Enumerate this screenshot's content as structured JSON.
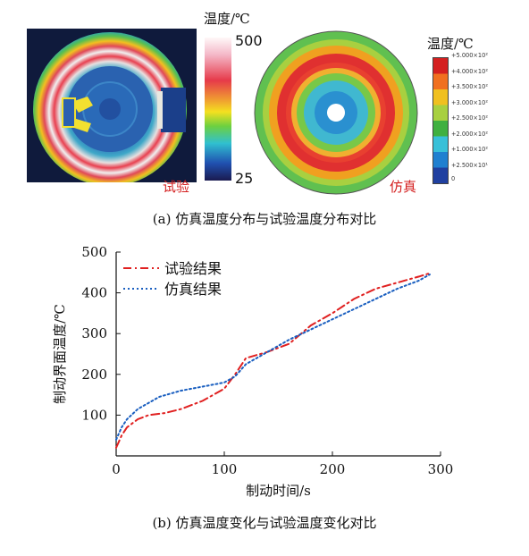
{
  "panel_a": {
    "experiment_colorbar": {
      "title": "温度/℃",
      "max_label": "500",
      "min_label": "25"
    },
    "experiment_tag": "试验",
    "simulation_colorbar": {
      "title": "温度/℃",
      "ticks": [
        "+5.000×10²",
        "+4.000×10²",
        "+3.500×10²",
        "+3.000×10²",
        "+2.500×10²",
        "+2.000×10²",
        "+1.000×10²",
        "+2.500×10¹",
        "0"
      ]
    },
    "simulation_tag": "仿真",
    "caption": "(a) 仿真温度分布与试验温度分布对比"
  },
  "caption_b": "(b) 仿真温度变化与试验温度变化对比",
  "chart_data": {
    "type": "line",
    "title": "",
    "xlabel": "制动时间/s",
    "ylabel": "制动界面温度/℃",
    "xlim": [
      0,
      300
    ],
    "ylim": [
      0,
      500
    ],
    "xticks": [
      "0",
      "100",
      "200",
      "300"
    ],
    "yticks": [
      "100",
      "200",
      "300",
      "400",
      "500"
    ],
    "legend_position": "top-left",
    "series": [
      {
        "name": "试验结果",
        "color": "#e02020",
        "style": "dash-dot",
        "x": [
          0,
          5,
          10,
          20,
          30,
          45,
          60,
          80,
          100,
          110,
          120,
          140,
          160,
          180,
          200,
          220,
          240,
          260,
          280,
          290
        ],
        "y": [
          20,
          50,
          70,
          90,
          100,
          105,
          115,
          135,
          165,
          200,
          240,
          255,
          275,
          320,
          350,
          385,
          410,
          425,
          440,
          448
        ]
      },
      {
        "name": "仿真结果",
        "color": "#1a5fc0",
        "style": "dotted",
        "x": [
          0,
          5,
          10,
          20,
          40,
          60,
          80,
          100,
          110,
          120,
          140,
          160,
          180,
          200,
          220,
          240,
          260,
          280,
          290
        ],
        "y": [
          40,
          70,
          90,
          115,
          145,
          160,
          170,
          180,
          195,
          225,
          255,
          285,
          310,
          335,
          360,
          385,
          410,
          430,
          445
        ]
      }
    ]
  }
}
